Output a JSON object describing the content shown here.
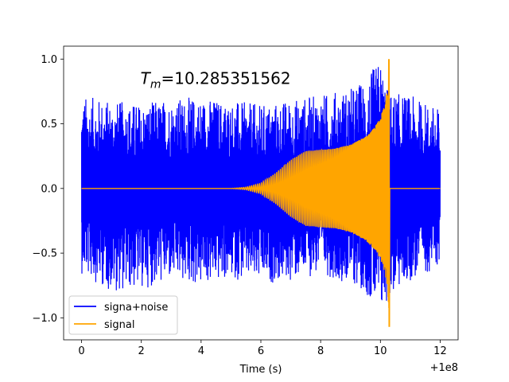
{
  "chart_data": {
    "type": "line",
    "title": "",
    "annotation": {
      "text_main": "T",
      "text_sub": "m",
      "text_rest": "=10.285351562",
      "x": 4.5,
      "y": 0.85
    },
    "xlabel": "Time (s)",
    "ylabel": "",
    "x_offset_label": "+1e8",
    "xlim": [
      -0.6,
      12.6
    ],
    "ylim": [
      -1.17,
      1.1
    ],
    "xticks": [
      0,
      2,
      4,
      6,
      8,
      10,
      12
    ],
    "yticks": [
      -1.0,
      -0.5,
      0.0,
      0.5,
      1.0
    ],
    "xtick_labels": [
      "0",
      "2",
      "4",
      "6",
      "8",
      "10",
      "12"
    ],
    "ytick_labels": [
      "−1.0",
      "−0.5",
      "0.0",
      "0.5",
      "1.0"
    ],
    "grid": false,
    "legend_position": "lower-left",
    "series": [
      {
        "name": "signa+noise",
        "color": "#0000ff",
        "description": "noisy strain, approximate envelope",
        "x": [
          0,
          1,
          2,
          3,
          4,
          5,
          6,
          7,
          8,
          9,
          9.5,
          10,
          10.28,
          11,
          12
        ],
        "upper": [
          0.72,
          0.68,
          0.66,
          0.7,
          0.71,
          0.68,
          0.65,
          0.69,
          0.73,
          0.78,
          0.85,
          1.0,
          0.75,
          0.72,
          0.62
        ],
        "lower": [
          -0.66,
          -0.8,
          -0.78,
          -0.72,
          -0.76,
          -0.7,
          -0.74,
          -0.72,
          -0.66,
          -0.74,
          -0.8,
          -1.02,
          -0.85,
          -0.72,
          -0.6
        ]
      },
      {
        "name": "signal",
        "color": "#ffa500",
        "description": "chirp envelope",
        "x": [
          0,
          5,
          5.5,
          6.0,
          6.5,
          7.0,
          7.5,
          8.0,
          8.5,
          9.0,
          9.5,
          9.8,
          10.0,
          10.15,
          10.25,
          10.285,
          10.3,
          12
        ],
        "envelope": [
          0.0,
          0.0,
          0.01,
          0.04,
          0.12,
          0.22,
          0.29,
          0.3,
          0.31,
          0.34,
          0.4,
          0.47,
          0.55,
          0.65,
          0.8,
          1.0,
          0.0,
          0.0
        ],
        "min_value": -1.07
      }
    ]
  },
  "legend": {
    "items": [
      {
        "label": "signa+noise",
        "color": "#0000ff"
      },
      {
        "label": "signal",
        "color": "#ffa500"
      }
    ]
  }
}
